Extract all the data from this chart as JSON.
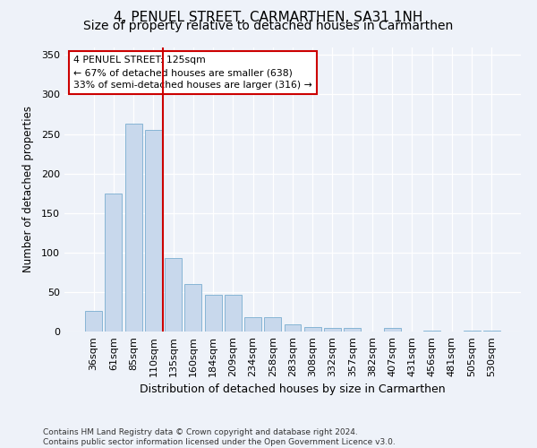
{
  "title": "4, PENUEL STREET, CARMARTHEN, SA31 1NH",
  "subtitle": "Size of property relative to detached houses in Carmarthen",
  "xlabel": "Distribution of detached houses by size in Carmarthen",
  "ylabel": "Number of detached properties",
  "categories": [
    "36sqm",
    "61sqm",
    "85sqm",
    "110sqm",
    "135sqm",
    "160sqm",
    "184sqm",
    "209sqm",
    "234sqm",
    "258sqm",
    "283sqm",
    "308sqm",
    "332sqm",
    "357sqm",
    "382sqm",
    "407sqm",
    "431sqm",
    "456sqm",
    "481sqm",
    "505sqm",
    "530sqm"
  ],
  "values": [
    26,
    175,
    263,
    255,
    93,
    60,
    46,
    46,
    18,
    18,
    9,
    6,
    5,
    5,
    0,
    5,
    0,
    1,
    0,
    1,
    1
  ],
  "bar_color": "#c8d8ec",
  "bar_edge_color": "#7aaed0",
  "marker_label": "4 PENUEL STREET: 125sqm",
  "annotation_line1": "← 67% of detached houses are smaller (638)",
  "annotation_line2": "33% of semi-detached houses are larger (316) →",
  "vline_color": "#cc0000",
  "vline_x": 3.5,
  "annotation_box_color": "#cc0000",
  "ylim": [
    0,
    360
  ],
  "title_fontsize": 11,
  "subtitle_fontsize": 10,
  "tick_fontsize": 8,
  "footer_text": "Contains HM Land Registry data © Crown copyright and database right 2024.\nContains public sector information licensed under the Open Government Licence v3.0.",
  "bg_color": "#eef2f9",
  "plot_bg_color": "#eef2f9"
}
